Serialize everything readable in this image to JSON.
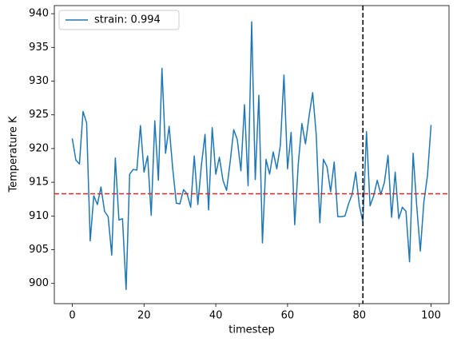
{
  "chart_data": {
    "type": "line",
    "xlabel": "timestep",
    "ylabel": "Temperature K",
    "x": [
      0,
      1,
      2,
      3,
      4,
      5,
      6,
      7,
      8,
      9,
      10,
      11,
      12,
      13,
      14,
      15,
      16,
      17,
      18,
      19,
      20,
      21,
      22,
      23,
      24,
      25,
      26,
      27,
      28,
      29,
      30,
      31,
      32,
      33,
      34,
      35,
      36,
      37,
      38,
      39,
      40,
      41,
      42,
      43,
      44,
      45,
      46,
      47,
      48,
      49,
      50,
      51,
      52,
      53,
      54,
      55,
      56,
      57,
      58,
      59,
      60,
      61,
      62,
      63,
      64,
      65,
      66,
      67,
      68,
      69,
      70,
      71,
      72,
      73,
      74,
      75,
      76,
      77,
      78,
      79,
      80,
      81,
      82,
      83,
      84,
      85,
      86,
      87,
      88,
      89,
      90,
      91,
      92,
      93,
      94,
      95,
      96,
      97,
      98,
      99,
      100
    ],
    "series": [
      {
        "name": "strain: 0.994",
        "color": "#1f77b4",
        "values": [
          921.5,
          918.3,
          917.7,
          925.5,
          923.8,
          906.3,
          913.0,
          911.7,
          914.3,
          910.7,
          909.9,
          904.2,
          918.6,
          909.4,
          909.6,
          899.1,
          916.2,
          916.9,
          916.8,
          923.4,
          916.5,
          918.9,
          910.1,
          924.1,
          915.3,
          931.9,
          919.3,
          923.3,
          917.0,
          911.9,
          911.8,
          913.9,
          913.3,
          911.3,
          918.9,
          911.7,
          917.6,
          922.1,
          910.9,
          923.1,
          916.2,
          918.7,
          915.3,
          913.8,
          918.0,
          922.8,
          921.3,
          916.7,
          926.5,
          914.5,
          938.8,
          915.4,
          927.9,
          906.0,
          918.4,
          916.2,
          919.5,
          917.0,
          920.5,
          930.9,
          917.0,
          922.4,
          908.7,
          917.8,
          923.7,
          920.7,
          924.8,
          928.3,
          922.0,
          909.0,
          918.4,
          917.3,
          913.6,
          918.0,
          909.9,
          909.9,
          910.0,
          911.8,
          913.2,
          916.5,
          911.6,
          909.1,
          922.5,
          911.5,
          913.0,
          915.3,
          913.2,
          915.0,
          919.0,
          909.8,
          916.5,
          909.6,
          911.3,
          910.7,
          903.2,
          919.3,
          911.5,
          904.8,
          912.1,
          916.0,
          923.5
        ]
      }
    ],
    "hline": {
      "value": 913.3,
      "color": "#d62728"
    },
    "vline": {
      "value": 81,
      "color": "#000000"
    },
    "xlim": [
      -5,
      105
    ],
    "ylim": [
      897,
      941.2
    ],
    "xticks": [
      0,
      20,
      40,
      60,
      80,
      100
    ],
    "yticks": [
      900,
      905,
      910,
      915,
      920,
      925,
      930,
      935,
      940
    ],
    "grid": false,
    "legend": "upper left"
  }
}
